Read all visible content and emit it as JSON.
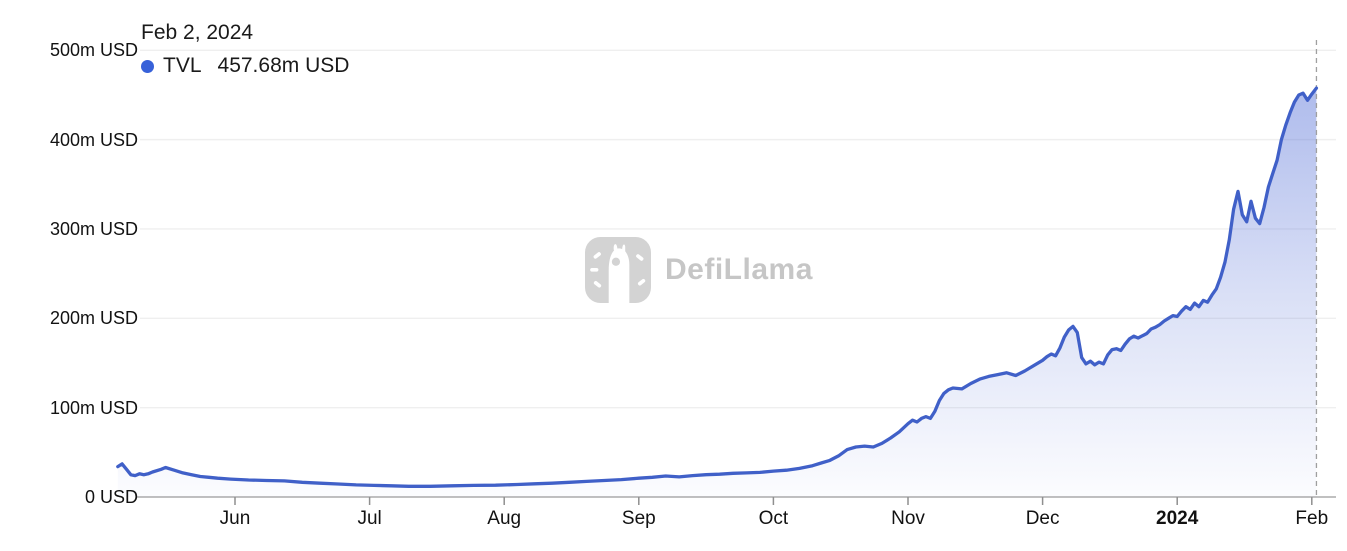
{
  "tooltip": {
    "date": "Feb 2, 2024",
    "series_label": "TVL",
    "value": "457.68m USD"
  },
  "watermark": {
    "brand": "DefiLlama"
  },
  "y_axis": {
    "labels": [
      {
        "text": "500m USD",
        "value": 500
      },
      {
        "text": "400m USD",
        "value": 400
      },
      {
        "text": "300m USD",
        "value": 300
      },
      {
        "text": "200m USD",
        "value": 200
      },
      {
        "text": "100m USD",
        "value": 100
      },
      {
        "text": "0 USD",
        "value": 0
      }
    ]
  },
  "x_axis": {
    "ticks": [
      {
        "label": "Jun",
        "month": "2023-06",
        "bold": false
      },
      {
        "label": "Jul",
        "month": "2023-07",
        "bold": false
      },
      {
        "label": "Aug",
        "month": "2023-08",
        "bold": false
      },
      {
        "label": "Sep",
        "month": "2023-09",
        "bold": false
      },
      {
        "label": "Oct",
        "month": "2023-10",
        "bold": false
      },
      {
        "label": "Nov",
        "month": "2023-11",
        "bold": false
      },
      {
        "label": "Dec",
        "month": "2023-12",
        "bold": false
      },
      {
        "label": "2024",
        "month": "2024-01",
        "bold": true
      },
      {
        "label": "Feb",
        "month": "2024-02",
        "bold": false
      }
    ]
  },
  "colors": {
    "line": "#4060c8",
    "dot": "#3761d9",
    "fill_rgb": "86,113,215",
    "grid": "#efefef",
    "axis": "#ababab",
    "tick": "#8f8f8f",
    "dashed": "#9f9f9f",
    "watermark_box": "#d3d3d3",
    "watermark_text": "#c6c6c6"
  },
  "chart_data": {
    "type": "area",
    "title": "TVL",
    "ylabel": "USD (millions)",
    "ylim": [
      0,
      500
    ],
    "grid": "horizontal",
    "highlight": {
      "date": "2024-02-02",
      "value": 457.68,
      "display": "457.68m USD"
    },
    "series": [
      {
        "name": "TVL",
        "unit": "m USD",
        "points": [
          [
            "2023-05-05",
            34
          ],
          [
            "2023-05-06",
            37
          ],
          [
            "2023-05-07",
            31
          ],
          [
            "2023-05-08",
            25
          ],
          [
            "2023-05-09",
            24
          ],
          [
            "2023-05-10",
            26
          ],
          [
            "2023-05-11",
            25
          ],
          [
            "2023-05-12",
            26
          ],
          [
            "2023-05-13",
            28
          ],
          [
            "2023-05-15",
            31
          ],
          [
            "2023-05-16",
            33
          ],
          [
            "2023-05-18",
            30
          ],
          [
            "2023-05-20",
            27
          ],
          [
            "2023-05-22",
            25
          ],
          [
            "2023-05-24",
            23
          ],
          [
            "2023-05-26",
            22
          ],
          [
            "2023-05-28",
            21
          ],
          [
            "2023-05-31",
            20
          ],
          [
            "2023-06-04",
            19
          ],
          [
            "2023-06-08",
            18.5
          ],
          [
            "2023-06-12",
            18
          ],
          [
            "2023-06-16",
            16.5
          ],
          [
            "2023-06-20",
            15.5
          ],
          [
            "2023-06-24",
            14.5
          ],
          [
            "2023-06-28",
            13.5
          ],
          [
            "2023-07-02",
            13
          ],
          [
            "2023-07-06",
            12.5
          ],
          [
            "2023-07-10",
            12
          ],
          [
            "2023-07-15",
            12
          ],
          [
            "2023-07-20",
            12.5
          ],
          [
            "2023-07-25",
            13
          ],
          [
            "2023-07-30",
            13.2
          ],
          [
            "2023-08-04",
            14
          ],
          [
            "2023-08-08",
            14.8
          ],
          [
            "2023-08-12",
            15.5
          ],
          [
            "2023-08-16",
            16.5
          ],
          [
            "2023-08-20",
            17.5
          ],
          [
            "2023-08-24",
            18.5
          ],
          [
            "2023-08-28",
            19.5
          ],
          [
            "2023-09-01",
            21
          ],
          [
            "2023-09-04",
            22
          ],
          [
            "2023-09-07",
            23.5
          ],
          [
            "2023-09-10",
            22.5
          ],
          [
            "2023-09-13",
            24
          ],
          [
            "2023-09-16",
            25
          ],
          [
            "2023-09-19",
            25.5
          ],
          [
            "2023-09-22",
            26.5
          ],
          [
            "2023-09-25",
            27
          ],
          [
            "2023-09-28",
            27.5
          ],
          [
            "2023-10-01",
            29
          ],
          [
            "2023-10-04",
            30
          ],
          [
            "2023-10-07",
            32
          ],
          [
            "2023-10-10",
            35
          ],
          [
            "2023-10-12",
            38
          ],
          [
            "2023-10-14",
            41
          ],
          [
            "2023-10-16",
            46
          ],
          [
            "2023-10-18",
            53
          ],
          [
            "2023-10-20",
            56
          ],
          [
            "2023-10-22",
            57
          ],
          [
            "2023-10-24",
            56
          ],
          [
            "2023-10-26",
            60
          ],
          [
            "2023-10-28",
            66
          ],
          [
            "2023-10-30",
            73
          ],
          [
            "2023-11-01",
            82
          ],
          [
            "2023-11-02",
            86
          ],
          [
            "2023-11-03",
            84
          ],
          [
            "2023-11-04",
            88
          ],
          [
            "2023-11-05",
            90
          ],
          [
            "2023-11-06",
            88
          ],
          [
            "2023-11-07",
            96
          ],
          [
            "2023-11-08",
            108
          ],
          [
            "2023-11-09",
            116
          ],
          [
            "2023-11-10",
            120
          ],
          [
            "2023-11-11",
            122
          ],
          [
            "2023-11-13",
            121
          ],
          [
            "2023-11-15",
            127
          ],
          [
            "2023-11-17",
            132
          ],
          [
            "2023-11-19",
            135
          ],
          [
            "2023-11-21",
            137
          ],
          [
            "2023-11-23",
            139
          ],
          [
            "2023-11-25",
            136
          ],
          [
            "2023-11-27",
            141
          ],
          [
            "2023-11-29",
            147
          ],
          [
            "2023-12-01",
            153
          ],
          [
            "2023-12-02",
            157
          ],
          [
            "2023-12-03",
            160
          ],
          [
            "2023-12-04",
            158
          ],
          [
            "2023-12-05",
            167
          ],
          [
            "2023-12-06",
            179
          ],
          [
            "2023-12-07",
            187
          ],
          [
            "2023-12-08",
            191
          ],
          [
            "2023-12-09",
            184
          ],
          [
            "2023-12-10",
            156
          ],
          [
            "2023-12-11",
            149
          ],
          [
            "2023-12-12",
            152
          ],
          [
            "2023-12-13",
            148
          ],
          [
            "2023-12-14",
            151
          ],
          [
            "2023-12-15",
            149
          ],
          [
            "2023-12-16",
            159
          ],
          [
            "2023-12-17",
            165
          ],
          [
            "2023-12-18",
            166
          ],
          [
            "2023-12-19",
            164
          ],
          [
            "2023-12-20",
            171
          ],
          [
            "2023-12-21",
            177
          ],
          [
            "2023-12-22",
            180
          ],
          [
            "2023-12-23",
            178
          ],
          [
            "2023-12-25",
            183
          ],
          [
            "2023-12-26",
            188
          ],
          [
            "2023-12-27",
            190
          ],
          [
            "2023-12-28",
            193
          ],
          [
            "2023-12-29",
            197
          ],
          [
            "2023-12-30",
            200
          ],
          [
            "2023-12-31",
            203
          ],
          [
            "2024-01-01",
            202
          ],
          [
            "2024-01-02",
            208
          ],
          [
            "2024-01-03",
            213
          ],
          [
            "2024-01-04",
            210
          ],
          [
            "2024-01-05",
            217
          ],
          [
            "2024-01-06",
            213
          ],
          [
            "2024-01-07",
            220
          ],
          [
            "2024-01-08",
            218
          ],
          [
            "2024-01-09",
            226
          ],
          [
            "2024-01-10",
            233
          ],
          [
            "2024-01-11",
            246
          ],
          [
            "2024-01-12",
            263
          ],
          [
            "2024-01-13",
            288
          ],
          [
            "2024-01-14",
            322
          ],
          [
            "2024-01-15",
            342
          ],
          [
            "2024-01-16",
            316
          ],
          [
            "2024-01-17",
            308
          ],
          [
            "2024-01-18",
            331
          ],
          [
            "2024-01-19",
            312
          ],
          [
            "2024-01-20",
            306
          ],
          [
            "2024-01-21",
            324
          ],
          [
            "2024-01-22",
            347
          ],
          [
            "2024-01-23",
            362
          ],
          [
            "2024-01-24",
            377
          ],
          [
            "2024-01-25",
            400
          ],
          [
            "2024-01-26",
            416
          ],
          [
            "2024-01-27",
            430
          ],
          [
            "2024-01-28",
            442
          ],
          [
            "2024-01-29",
            450
          ],
          [
            "2024-01-30",
            452
          ],
          [
            "2024-01-31",
            444
          ],
          [
            "2024-02-01",
            451
          ],
          [
            "2024-02-02",
            457.68
          ]
        ]
      }
    ]
  }
}
